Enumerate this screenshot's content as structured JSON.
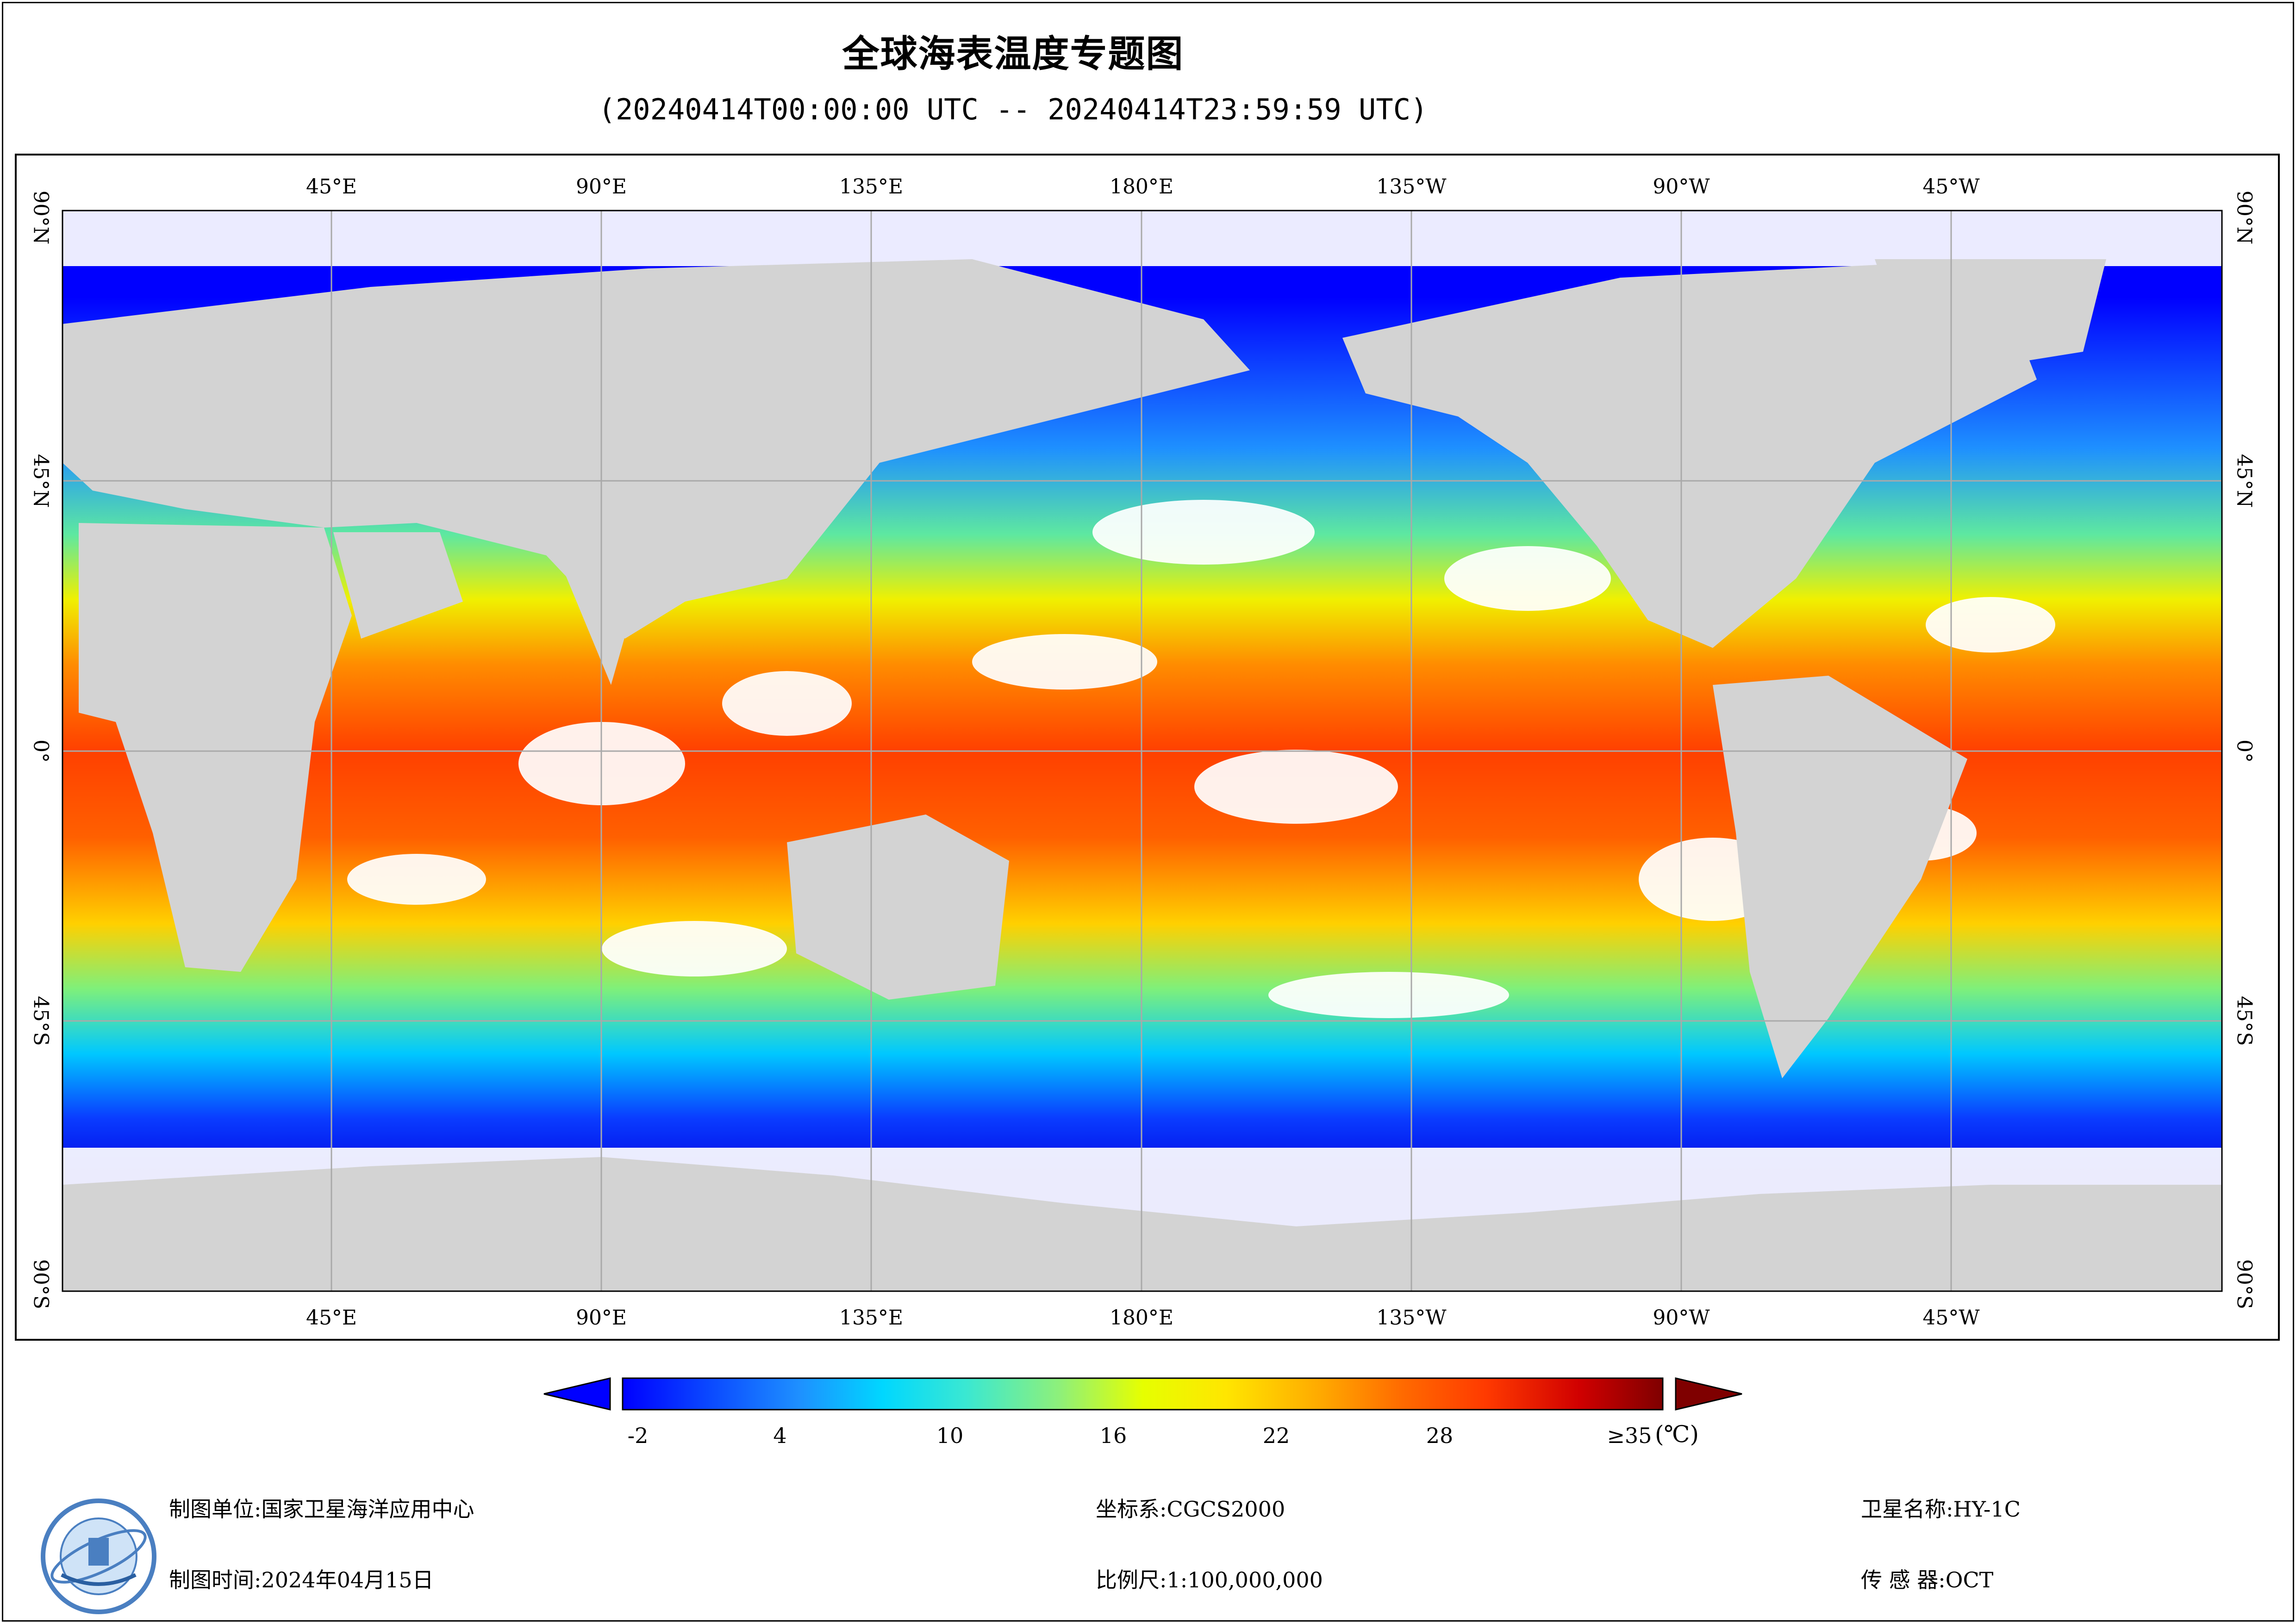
{
  "header": {
    "title": "全球海表温度专题图",
    "subtitle": "(20240414T00:00:00 UTC -- 20240414T23:59:59 UTC)"
  },
  "map": {
    "lon_labels": [
      "45°E",
      "90°E",
      "135°E",
      "180°E",
      "135°W",
      "90°W",
      "45°W"
    ],
    "lat_labels": [
      "90°N",
      "45°N",
      "0°",
      "45°S",
      "90°S"
    ],
    "land_color": "#d3d3d3",
    "no_data_color": "#ffffff",
    "graticule_color": "#a9a9a9"
  },
  "colorbar": {
    "tick_labels": [
      "-2",
      "4",
      "10",
      "16",
      "22",
      "28",
      "≥35"
    ],
    "unit": "(℃)",
    "min": -2,
    "max": 35,
    "colors": [
      "#0000ff",
      "#0a46ff",
      "#1e90ff",
      "#00d7ff",
      "#3ae8d2",
      "#8ef07a",
      "#e6ff00",
      "#ffe600",
      "#ffaa00",
      "#ff6a00",
      "#ff3a00",
      "#d00000",
      "#7f0000"
    ],
    "under_color": "#0000ff",
    "over_color": "#7f0000"
  },
  "footer": {
    "unit_label": "制图单位:国家卫星海洋应用中心",
    "time_label": "制图时间:2024年04月15日",
    "crs_label": "坐标系:CGCS2000",
    "scale_label": "比例尺:1:100,000,000",
    "satellite_label": "卫星名称:HY-1C",
    "sensor_label": "传 感 器:OCT"
  }
}
